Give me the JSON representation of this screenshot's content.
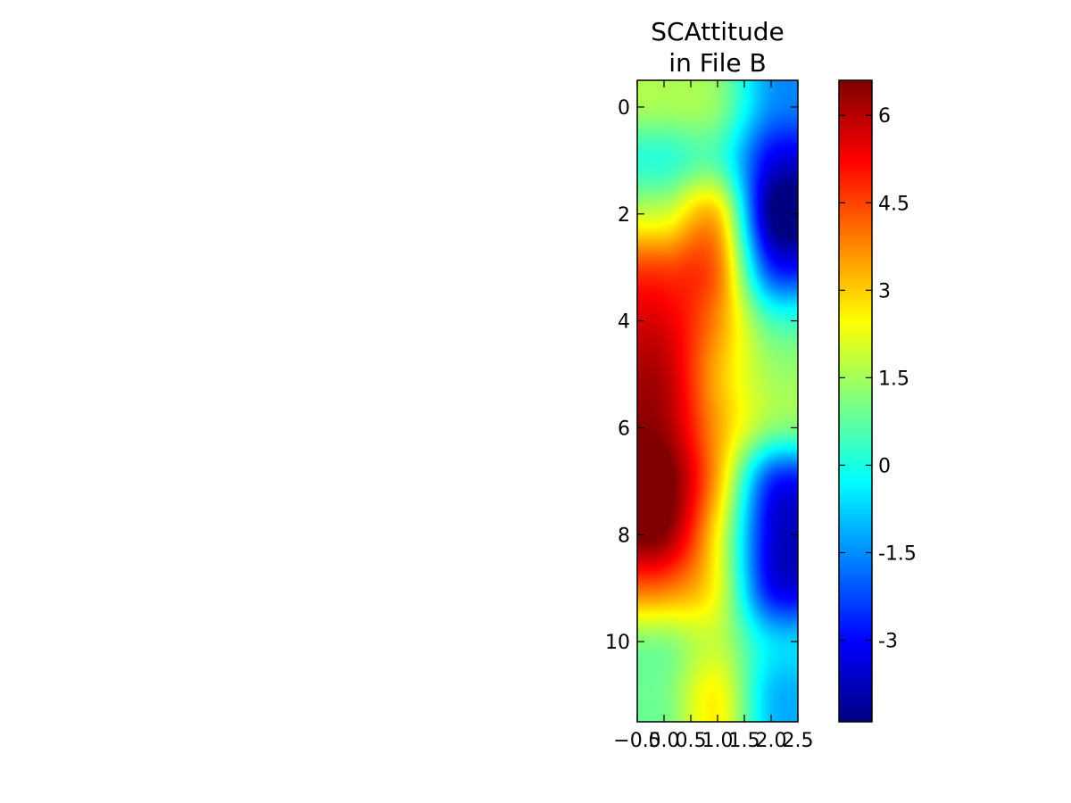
{
  "chart_data": {
    "type": "heatmap",
    "title": [
      "SCAttitude",
      "in File B"
    ],
    "colormap": "jet",
    "interpolation": "bicubic",
    "x_tick_labels": [
      "−0.5",
      "0.0",
      "0.5",
      "1.0",
      "1.5",
      "2.0",
      "2.5"
    ],
    "x_ticks": [
      -0.5,
      0.0,
      0.5,
      1.0,
      1.5,
      2.0,
      2.5
    ],
    "xlim": [
      -0.5,
      2.5
    ],
    "y_tick_labels": [
      "0",
      "2",
      "4",
      "6",
      "8",
      "10"
    ],
    "y_ticks": [
      0,
      2,
      4,
      6,
      8,
      10
    ],
    "ylim": [
      11.5,
      -0.5
    ],
    "y_inverted": true,
    "columns": [
      0,
      1,
      2
    ],
    "rows": [
      0,
      1,
      2,
      3,
      4,
      5,
      6,
      7,
      8,
      9,
      10,
      11
    ],
    "values": [
      [
        1.5,
        1.2,
        -1.5
      ],
      [
        0.2,
        0.5,
        -3.2
      ],
      [
        2.0,
        3.0,
        -4.3
      ],
      [
        4.5,
        4.0,
        -2.5
      ],
      [
        5.5,
        3.7,
        0.5
      ],
      [
        6.0,
        3.3,
        1.5
      ],
      [
        6.3,
        3.5,
        1.2
      ],
      [
        7.0,
        3.3,
        -2.5
      ],
      [
        6.5,
        2.5,
        -3.3
      ],
      [
        4.0,
        2.3,
        -3.0
      ],
      [
        1.2,
        1.8,
        -0.6
      ],
      [
        1.0,
        2.5,
        -0.9
      ]
    ],
    "colorbar": {
      "range": [
        -4.4,
        6.6
      ],
      "tick_values": [
        6,
        4.5,
        3,
        1.5,
        0,
        -1.5,
        -3
      ],
      "tick_labels": [
        "6",
        "4.5",
        "3",
        "1.5",
        "0",
        "-1.5",
        "-3"
      ]
    }
  }
}
